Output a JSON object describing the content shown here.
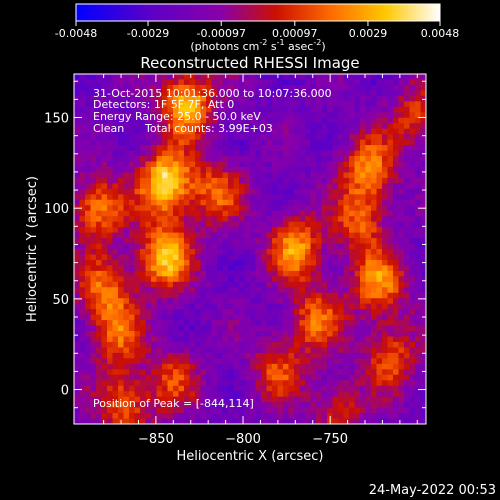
{
  "chart_data": {
    "type": "heatmap",
    "title": "Reconstructed RHESSI Image",
    "xlabel": "Heliocentric X (arcsec)",
    "ylabel": "Heliocentric Y (arcsec)",
    "xlim": [
      -897,
      -695
    ],
    "ylim": [
      -19,
      174
    ],
    "xticks": [
      -850,
      -800,
      -750
    ],
    "yticks": [
      0,
      50,
      100,
      150
    ],
    "grid": false,
    "colorbar": {
      "range": [
        -0.0048,
        0.0048
      ],
      "ticks": [
        "-0.0048",
        "-0.0029",
        "-0.00097",
        "0.00097",
        "0.0029",
        "0.0048"
      ],
      "units_main": "(photons cm",
      "units_sup1": "-2",
      "units_mid1": " s",
      "units_sup2": "-1",
      "units_mid2": " asec",
      "units_sup3": "-2",
      "units_end": ")",
      "colors": [
        "#0000ff",
        "#5a00c8",
        "#8a00a8",
        "#cc1000",
        "#ff6a00",
        "#ffc800",
        "#ffffff"
      ]
    },
    "annotations": {
      "time": "31-Oct-2015 10:01:36.000 to 10:07:36.000",
      "detectors": "Detectors: 1F 5F 7F, Att 0",
      "energy": "Energy Range: 25.0 - 50.0 keV",
      "algorithm": "Clean",
      "counts": "Total counts: 3.99E+03",
      "peak": "Position of Peak = [-844,114]"
    },
    "sources": [
      {
        "x": -844,
        "y": 114,
        "amp": 1.0
      },
      {
        "x": -832,
        "y": 158,
        "amp": 0.85
      },
      {
        "x": -845,
        "y": 73,
        "amp": 0.9
      },
      {
        "x": -815,
        "y": 108,
        "amp": 0.55
      },
      {
        "x": -770,
        "y": 78,
        "amp": 0.75
      },
      {
        "x": -758,
        "y": 38,
        "amp": 0.6
      },
      {
        "x": -728,
        "y": 122,
        "amp": 0.7
      },
      {
        "x": -722,
        "y": 58,
        "amp": 0.7
      },
      {
        "x": -715,
        "y": 18,
        "amp": 0.55
      },
      {
        "x": -883,
        "y": 100,
        "amp": 0.7
      },
      {
        "x": -880,
        "y": 55,
        "amp": 0.6
      },
      {
        "x": -872,
        "y": 30,
        "amp": 0.55
      },
      {
        "x": -868,
        "y": -8,
        "amp": 0.6
      },
      {
        "x": -840,
        "y": 5,
        "amp": 0.45
      },
      {
        "x": -780,
        "y": 10,
        "amp": 0.5
      },
      {
        "x": -745,
        "y": -12,
        "amp": 0.45
      },
      {
        "x": -700,
        "y": 150,
        "amp": 0.5
      },
      {
        "x": -733,
        "y": 92,
        "amp": 0.55
      }
    ]
  },
  "footer": {
    "date": "24-May-2022 00:53"
  }
}
